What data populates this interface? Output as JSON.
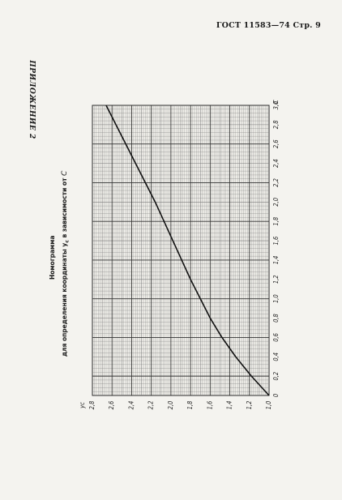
{
  "header": {
    "text": "ГОСТ 11583—74 Стр. 9"
  },
  "appendix": {
    "text": "ПРИЛОЖЕНИЕ 2"
  },
  "nomogram": {
    "title": "Номограмма",
    "subtitle_prefix": "для определения координаты",
    "subtitle_var": "y",
    "subtitle_sub": "c",
    "subtitle_suffix": "в зависимости от",
    "subtitle_end": "C"
  },
  "chart_data": {
    "type": "line",
    "title": "Номограмма для определения координаты yc в зависимости от C",
    "xlabel": "C",
    "ylabel": "yc",
    "xlim": [
      0,
      3.0
    ],
    "ylim": [
      1.0,
      2.8
    ],
    "x_ticks": [
      "0",
      "0,2",
      "0,4",
      "0,6",
      "0,8",
      "1,0",
      "1,2",
      "1,4",
      "1,6",
      "1,8",
      "2,0",
      "2,2",
      "2,4",
      "2,6",
      "2,8",
      "3,0"
    ],
    "y_ticks": [
      "1,0",
      "1,2",
      "1,4",
      "1,6",
      "1,8",
      "2,0",
      "2,2",
      "2,4",
      "2,6",
      "2,8"
    ],
    "grid": true,
    "series": [
      {
        "x": [
          0,
          0.2,
          0.4,
          0.6,
          0.8,
          1.0,
          1.2,
          1.4,
          1.6,
          1.8,
          2.0,
          2.2,
          2.4,
          2.6,
          2.8,
          3.0
        ],
        "values": [
          1.0,
          1.18,
          1.34,
          1.48,
          1.6,
          1.7,
          1.8,
          1.89,
          1.98,
          2.07,
          2.16,
          2.26,
          2.36,
          2.46,
          2.56,
          2.66
        ]
      }
    ]
  }
}
